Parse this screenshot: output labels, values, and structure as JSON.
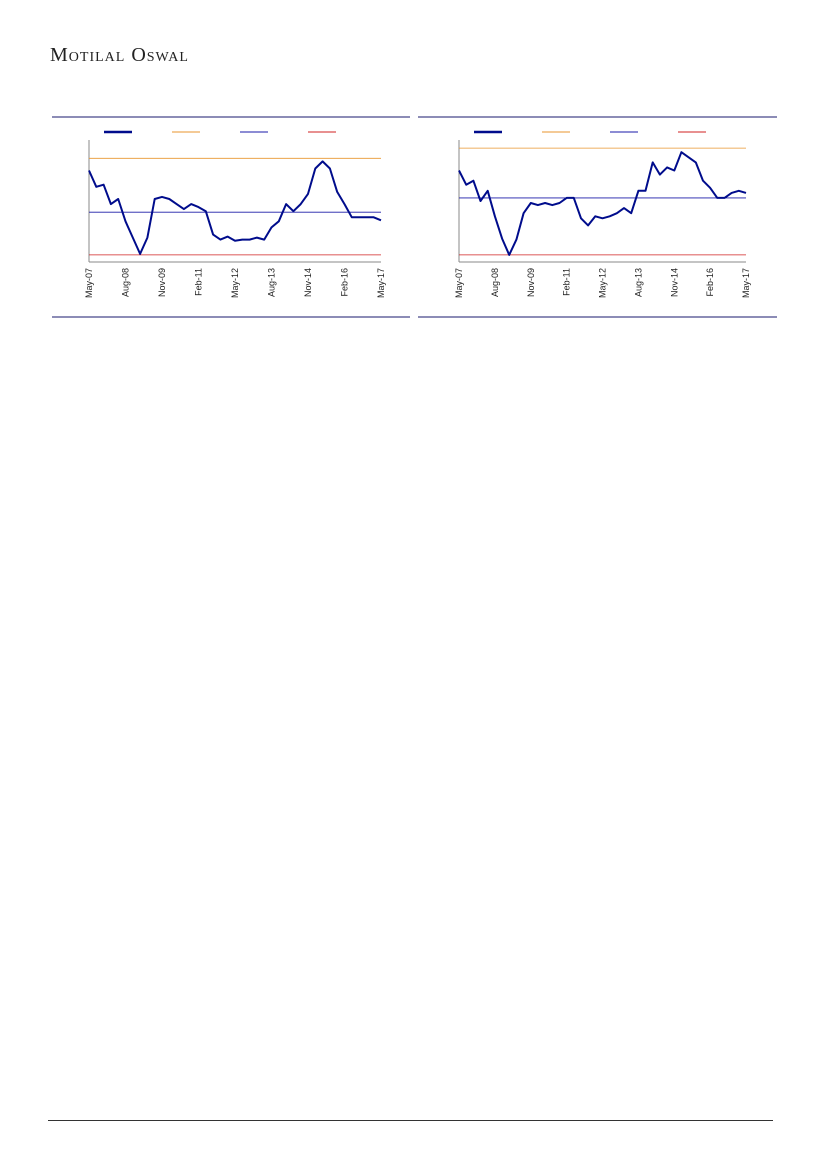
{
  "header": {
    "brand": "Motilal Oswal"
  },
  "chart_data": [
    {
      "type": "line",
      "categories": [
        "May-07",
        null,
        null,
        null,
        null,
        "Aug-08",
        null,
        null,
        null,
        null,
        "Nov-09",
        null,
        null,
        null,
        null,
        "Feb-11",
        null,
        null,
        null,
        null,
        "May-12",
        null,
        null,
        null,
        null,
        "Aug-13",
        null,
        null,
        null,
        null,
        "Nov-14",
        null,
        null,
        null,
        null,
        "Feb-16",
        null,
        null,
        null,
        null,
        "May-17"
      ],
      "ylim": [
        0,
        120
      ],
      "series": [
        {
          "color": "#000c8c",
          "values": [
            90,
            74,
            76,
            57,
            62,
            40,
            24,
            8,
            24,
            62,
            64,
            62,
            57,
            52,
            57,
            54,
            50,
            27,
            22,
            25,
            21,
            22,
            22,
            24,
            22,
            34,
            40,
            57,
            50,
            57,
            67,
            92,
            99,
            92,
            69,
            57,
            44,
            44,
            44,
            44,
            41
          ]
        },
        {
          "color": "#e8962e",
          "value": 102
        },
        {
          "color": "#1a1aa8",
          "value": 49
        },
        {
          "color": "#d02020",
          "value": 7
        }
      ]
    },
    {
      "type": "line",
      "categories": [
        "May-07",
        null,
        null,
        null,
        null,
        "Aug-08",
        null,
        null,
        null,
        null,
        "Nov-09",
        null,
        null,
        null,
        null,
        "Feb-11",
        null,
        null,
        null,
        null,
        "May-12",
        null,
        null,
        null,
        null,
        "Aug-13",
        null,
        null,
        null,
        null,
        "Nov-14",
        null,
        null,
        null,
        null,
        "Feb-16",
        null,
        null,
        null,
        null,
        "May-17"
      ],
      "ylim": [
        0,
        120
      ],
      "series": [
        {
          "color": "#000c8c",
          "values": [
            90,
            76,
            80,
            60,
            70,
            45,
            23,
            7,
            22,
            48,
            58,
            56,
            58,
            56,
            58,
            63,
            63,
            43,
            36,
            45,
            43,
            45,
            48,
            53,
            48,
            70,
            70,
            98,
            86,
            93,
            90,
            108,
            103,
            98,
            80,
            73,
            63,
            63,
            68,
            70,
            68
          ]
        },
        {
          "color": "#e8962e",
          "value": 112
        },
        {
          "color": "#1a1aa8",
          "value": 63
        },
        {
          "color": "#d02020",
          "value": 7
        }
      ]
    }
  ]
}
